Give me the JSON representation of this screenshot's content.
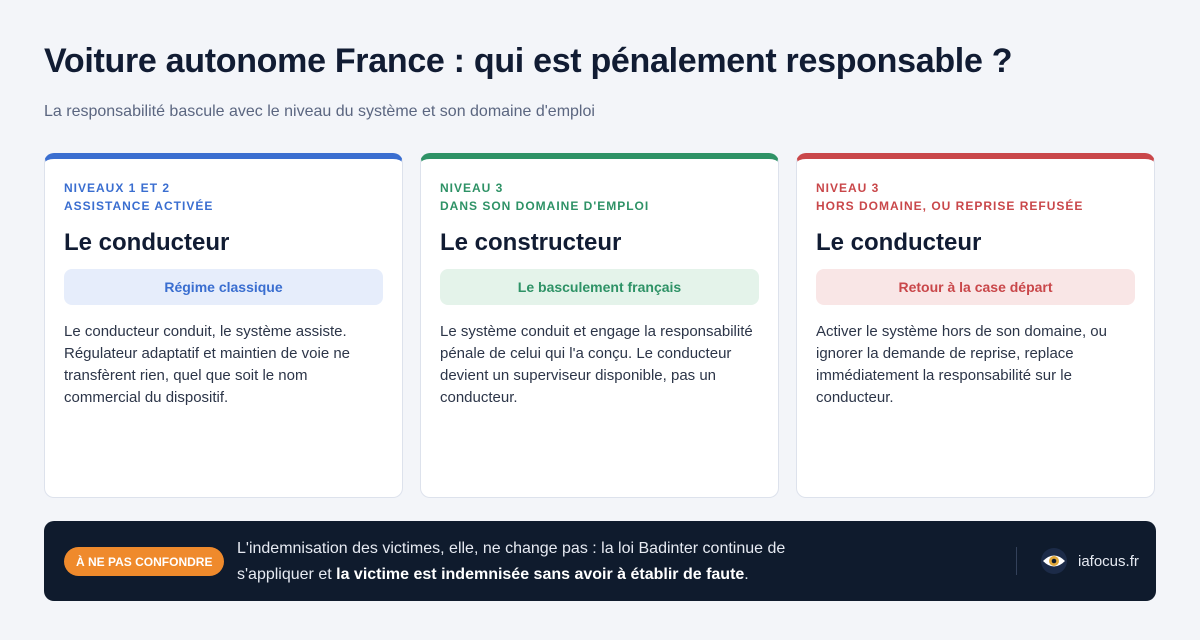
{
  "header": {
    "title": "Voiture autonome France : qui est pénalement responsable ?",
    "subtitle": "La responsabilité bascule avec le niveau du système et son domaine d'emploi"
  },
  "cards": [
    {
      "level": "NIVEAUX 1 ET 2",
      "condition": "ASSISTANCE ACTIVÉE",
      "title": "Le conducteur",
      "badge": "Régime classique",
      "body": "Le conducteur conduit, le système assiste. Régulateur adaptatif et maintien de voie ne transfèrent rien, quel que soit le nom commercial du dispositif."
    },
    {
      "level": "NIVEAU 3",
      "condition": "DANS SON DOMAINE D'EMPLOI",
      "title": "Le constructeur",
      "badge": "Le basculement français",
      "body": "Le système conduit et engage la responsabilité pénale de celui qui l'a conçu. Le conducteur devient un superviseur disponible, pas un conducteur."
    },
    {
      "level": "NIVEAU 3",
      "condition": "HORS DOMAINE, OU REPRISE REFUSÉE",
      "title": "Le conducteur",
      "badge": "Retour à la case départ",
      "body": "Activer le système hors de son domaine, ou ignorer la demande de reprise, replace immédiatement la responsabilité sur le conducteur."
    }
  ],
  "footer": {
    "badge": "À NE PAS CONFONDRE",
    "text": "L'indemnisation des victimes, elle, ne change pas : la loi Badinter continue de s'appliquer et ",
    "text_bold": "la victime est indemnisée sans avoir à établir de faute",
    "text_end": ".",
    "brand": "iafocus.fr"
  }
}
